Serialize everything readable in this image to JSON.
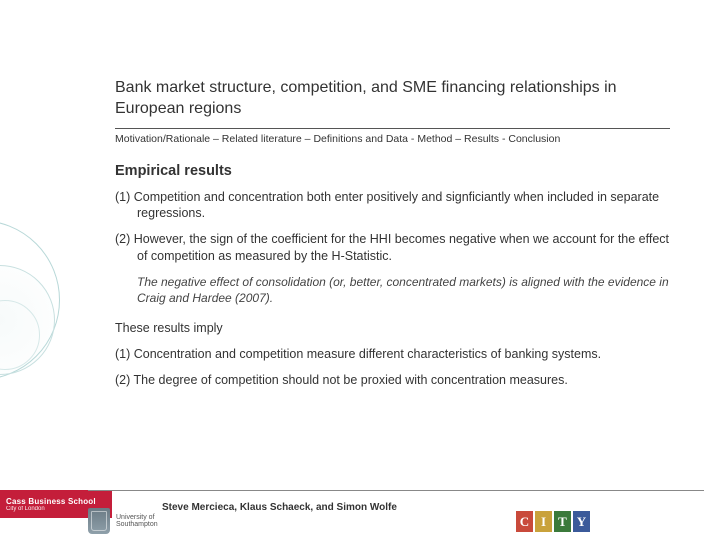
{
  "title": "Bank market structure, competition, and SME financing relationships in European regions",
  "breadcrumb": "Motivation/Rationale – Related literature – Definitions and Data - Method – Results - Conclusion",
  "section_heading": "Empirical results",
  "items1": [
    "(1) Competition and concentration both enter positively and signficiantly when included in separate regressions.",
    "(2) However, the sign of the coefficient for the HHI becomes negative when we account for the effect of competition as measured by the H-Statistic."
  ],
  "italic_note": "The negative effect of consolidation (or, better, concentrated markets) is aligned with the evidence in Craig and Hardee (2007).",
  "imply_intro": "These results imply",
  "items2": [
    "(1) Concentration and competition measure different characteristics of banking systems.",
    "(2) The degree of competition should not be proxied with concentration measures."
  ],
  "authors": "Steve Mercieca, Klaus Schaeck, and Simon Wolfe",
  "logos": {
    "southampton": {
      "line1": "University of",
      "line2": "Southampton"
    },
    "city_letters": [
      "C",
      "I",
      "T",
      "Y"
    ],
    "cass": {
      "name": "Cass Business School",
      "sub": "City of London"
    }
  },
  "colors": {
    "rule": "#555555",
    "city_palette": [
      "#c94a3b",
      "#c9a23b",
      "#3b7a3b",
      "#3b5a9a"
    ],
    "cass_bg": "#c41e3a",
    "circle_stroke": "#b8d8d8"
  }
}
